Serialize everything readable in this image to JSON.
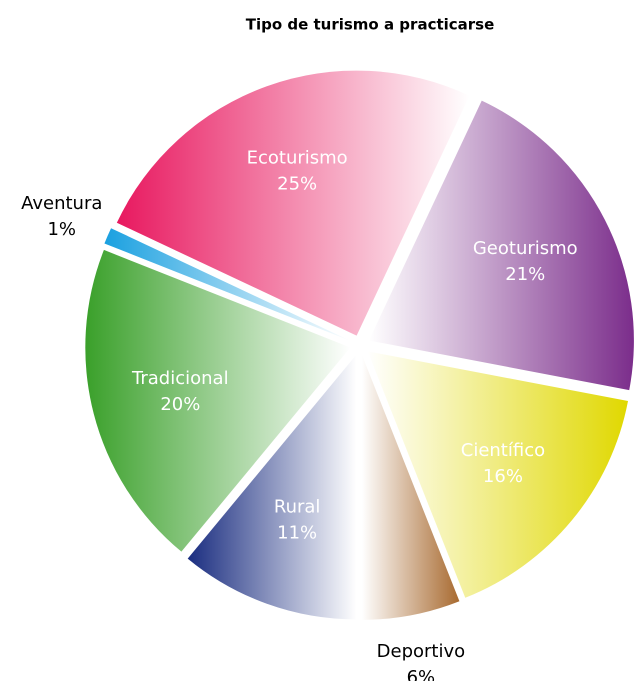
{
  "chart_data": {
    "type": "pie",
    "title": "Tipo de turismo a practicarse",
    "categories": [
      "Ecoturismo",
      "Geoturismo",
      "Científico",
      "Deportivo",
      "Rural",
      "Tradicional",
      "Aventura"
    ],
    "values": [
      25,
      21,
      16,
      6,
      11,
      20,
      1
    ],
    "value_labels": [
      "25%",
      "21%",
      "16%",
      "6%",
      "11%",
      "20%",
      "1%"
    ],
    "colors": [
      "#e8185f",
      "#7b2d8b",
      "#e0d800",
      "#a86a30",
      "#1a2d80",
      "#3aa02a",
      "#1aa0e0"
    ]
  }
}
